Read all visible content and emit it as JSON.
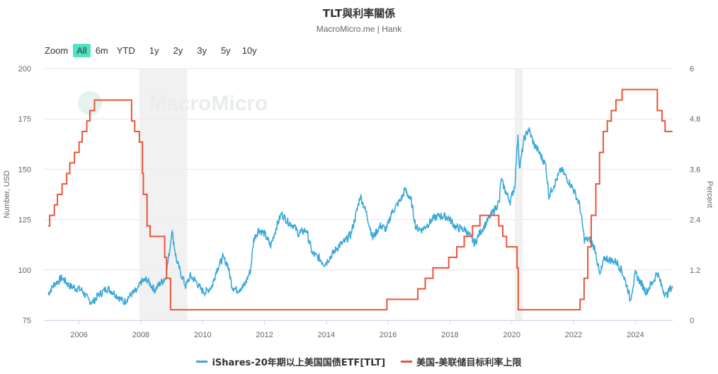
{
  "header": {
    "title": "TLT與利率關係",
    "subtitle": "MacroMicro.me | Hank"
  },
  "zoom": {
    "label": "Zoom",
    "buttons": [
      "All",
      "6m",
      "YTD",
      "1y",
      "2y",
      "3y",
      "5y",
      "10y"
    ],
    "active": "All"
  },
  "watermark": "MacroMicro",
  "chart_data": {
    "type": "line",
    "title": "TLT與利率關係",
    "xlim": [
      2004.85,
      2025.3
    ],
    "x_ticks": [
      2006,
      2008,
      2010,
      2012,
      2014,
      2016,
      2018,
      2020,
      2022,
      2024
    ],
    "y_left": {
      "label": "Number, USD",
      "ticks": [
        75,
        100,
        125,
        150,
        175,
        200
      ],
      "range": [
        75,
        200
      ]
    },
    "y_right": {
      "label": "Percent",
      "ticks": [
        0,
        1.2,
        2.4,
        3.6,
        4.8,
        6
      ],
      "range": [
        0,
        6
      ]
    },
    "recessions": [
      [
        2007.95,
        2009.5
      ],
      [
        2020.1,
        2020.35
      ]
    ],
    "series": [
      {
        "name": "iShares-20年期以上美国国债ETF[TLT]",
        "color": "#3aa8d8",
        "axis": "left",
        "points": [
          [
            2005.0,
            88
          ],
          [
            2005.2,
            93
          ],
          [
            2005.45,
            96
          ],
          [
            2005.7,
            92
          ],
          [
            2005.9,
            91
          ],
          [
            2006.1,
            90
          ],
          [
            2006.3,
            85
          ],
          [
            2006.45,
            84
          ],
          [
            2006.6,
            87
          ],
          [
            2006.9,
            91
          ],
          [
            2007.1,
            89
          ],
          [
            2007.45,
            84
          ],
          [
            2007.7,
            88
          ],
          [
            2007.9,
            90
          ],
          [
            2008.0,
            94
          ],
          [
            2008.2,
            95
          ],
          [
            2008.45,
            90
          ],
          [
            2008.6,
            93
          ],
          [
            2008.8,
            96
          ],
          [
            2008.95,
            112
          ],
          [
            2009.0,
            120
          ],
          [
            2009.15,
            105
          ],
          [
            2009.3,
            98
          ],
          [
            2009.45,
            92
          ],
          [
            2009.6,
            97
          ],
          [
            2009.8,
            94
          ],
          [
            2009.95,
            90
          ],
          [
            2010.1,
            89
          ],
          [
            2010.3,
            92
          ],
          [
            2010.45,
            100
          ],
          [
            2010.65,
            106
          ],
          [
            2010.8,
            103
          ],
          [
            2010.95,
            92
          ],
          [
            2011.1,
            90
          ],
          [
            2011.35,
            92
          ],
          [
            2011.55,
            100
          ],
          [
            2011.65,
            115
          ],
          [
            2011.8,
            120
          ],
          [
            2012.0,
            118
          ],
          [
            2012.2,
            112
          ],
          [
            2012.4,
            122
          ],
          [
            2012.55,
            128
          ],
          [
            2012.75,
            124
          ],
          [
            2012.95,
            122
          ],
          [
            2013.1,
            118
          ],
          [
            2013.35,
            120
          ],
          [
            2013.55,
            108
          ],
          [
            2013.75,
            106
          ],
          [
            2013.95,
            103
          ],
          [
            2014.1,
            106
          ],
          [
            2014.4,
            112
          ],
          [
            2014.6,
            114
          ],
          [
            2014.8,
            118
          ],
          [
            2015.0,
            130
          ],
          [
            2015.1,
            137
          ],
          [
            2015.3,
            128
          ],
          [
            2015.5,
            116
          ],
          [
            2015.75,
            122
          ],
          [
            2015.95,
            120
          ],
          [
            2016.1,
            128
          ],
          [
            2016.45,
            136
          ],
          [
            2016.55,
            140
          ],
          [
            2016.75,
            134
          ],
          [
            2016.9,
            121
          ],
          [
            2017.1,
            120
          ],
          [
            2017.5,
            126
          ],
          [
            2017.7,
            127
          ],
          [
            2017.95,
            126
          ],
          [
            2018.2,
            121
          ],
          [
            2018.5,
            120
          ],
          [
            2018.8,
            113
          ],
          [
            2018.95,
            118
          ],
          [
            2019.2,
            124
          ],
          [
            2019.6,
            134
          ],
          [
            2019.65,
            145
          ],
          [
            2019.8,
            139
          ],
          [
            2019.95,
            134
          ],
          [
            2020.1,
            142
          ],
          [
            2020.2,
            168
          ],
          [
            2020.25,
            150
          ],
          [
            2020.4,
            165
          ],
          [
            2020.55,
            170
          ],
          [
            2020.7,
            163
          ],
          [
            2020.9,
            158
          ],
          [
            2021.1,
            152
          ],
          [
            2021.2,
            137
          ],
          [
            2021.45,
            145
          ],
          [
            2021.6,
            150
          ],
          [
            2021.8,
            145
          ],
          [
            2022.0,
            140
          ],
          [
            2022.2,
            132
          ],
          [
            2022.35,
            115
          ],
          [
            2022.55,
            115
          ],
          [
            2022.7,
            110
          ],
          [
            2022.85,
            97
          ],
          [
            2023.0,
            106
          ],
          [
            2023.15,
            105
          ],
          [
            2023.4,
            104
          ],
          [
            2023.55,
            100
          ],
          [
            2023.75,
            91
          ],
          [
            2023.83,
            85
          ],
          [
            2024.0,
            98
          ],
          [
            2024.2,
            93
          ],
          [
            2024.35,
            89
          ],
          [
            2024.6,
            95
          ],
          [
            2024.7,
            99
          ],
          [
            2024.85,
            92
          ],
          [
            2025.0,
            87
          ],
          [
            2025.1,
            90
          ],
          [
            2025.2,
            92
          ]
        ]
      },
      {
        "name": "美国-美联储目标利率上限",
        "color": "#e9553a",
        "axis": "right",
        "step": true,
        "points": [
          [
            2005.0,
            2.25
          ],
          [
            2005.05,
            2.5
          ],
          [
            2005.2,
            2.75
          ],
          [
            2005.3,
            3.0
          ],
          [
            2005.45,
            3.25
          ],
          [
            2005.6,
            3.5
          ],
          [
            2005.7,
            3.75
          ],
          [
            2005.85,
            4.0
          ],
          [
            2006.0,
            4.25
          ],
          [
            2006.1,
            4.5
          ],
          [
            2006.25,
            4.75
          ],
          [
            2006.35,
            5.0
          ],
          [
            2006.5,
            5.25
          ],
          [
            2007.7,
            4.75
          ],
          [
            2007.8,
            4.5
          ],
          [
            2007.95,
            4.25
          ],
          [
            2008.05,
            3.5
          ],
          [
            2008.08,
            3.0
          ],
          [
            2008.2,
            2.25
          ],
          [
            2008.3,
            2.0
          ],
          [
            2008.77,
            1.5
          ],
          [
            2008.83,
            1.0
          ],
          [
            2008.96,
            0.25
          ],
          [
            2015.96,
            0.5
          ],
          [
            2016.96,
            0.75
          ],
          [
            2017.2,
            1.0
          ],
          [
            2017.45,
            1.25
          ],
          [
            2017.96,
            1.5
          ],
          [
            2018.22,
            1.75
          ],
          [
            2018.46,
            2.0
          ],
          [
            2018.73,
            2.25
          ],
          [
            2018.97,
            2.5
          ],
          [
            2019.58,
            2.25
          ],
          [
            2019.71,
            2.0
          ],
          [
            2019.83,
            1.75
          ],
          [
            2020.17,
            1.25
          ],
          [
            2020.21,
            0.25
          ],
          [
            2022.21,
            0.5
          ],
          [
            2022.34,
            1.0
          ],
          [
            2022.46,
            1.75
          ],
          [
            2022.57,
            2.5
          ],
          [
            2022.72,
            3.25
          ],
          [
            2022.84,
            4.0
          ],
          [
            2022.96,
            4.5
          ],
          [
            2023.09,
            4.75
          ],
          [
            2023.22,
            5.0
          ],
          [
            2023.37,
            5.25
          ],
          [
            2023.57,
            5.5
          ],
          [
            2024.71,
            5.0
          ],
          [
            2024.86,
            4.75
          ],
          [
            2024.96,
            4.5
          ],
          [
            2025.2,
            4.5
          ]
        ]
      }
    ]
  }
}
